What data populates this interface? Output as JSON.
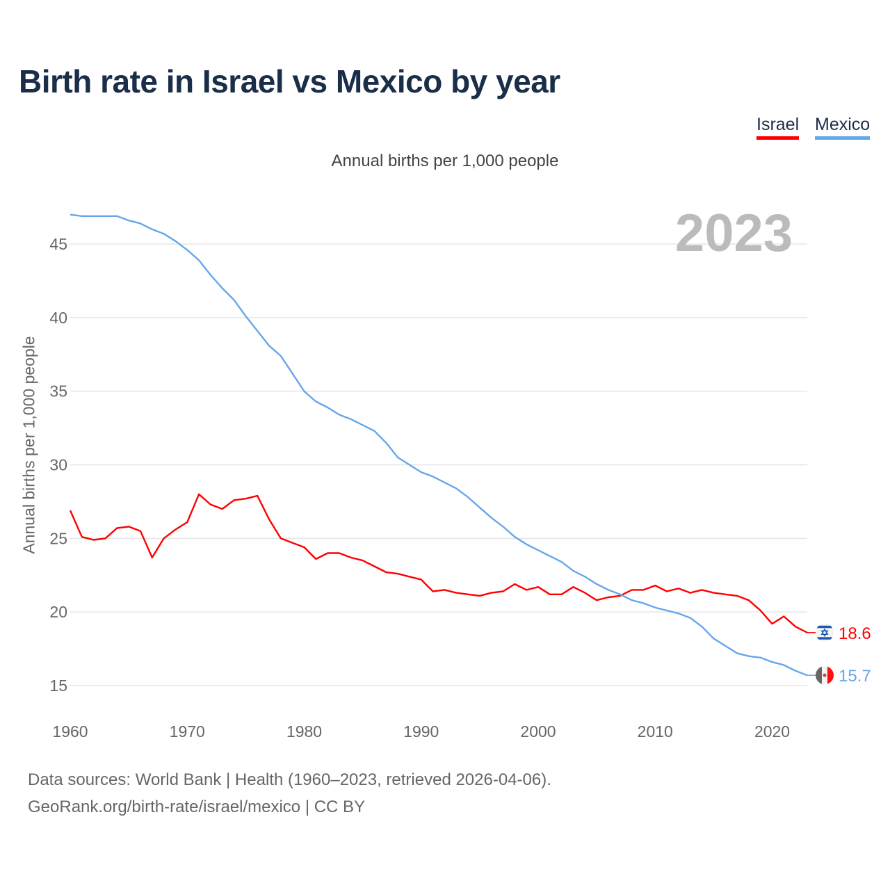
{
  "chart_data": {
    "type": "line",
    "title": "Birth rate in Israel vs Mexico by year",
    "subtitle": "Annual births per 1,000 people",
    "ylabel": "Annual births per 1,000 people",
    "xlabel": "",
    "current_year_label": "2023",
    "xlim": [
      1960,
      2023
    ],
    "ylim": [
      15,
      45
    ],
    "yticks": [
      15,
      20,
      25,
      30,
      35,
      40,
      45
    ],
    "xticks": [
      1960,
      1970,
      1980,
      1990,
      2000,
      2010,
      2020
    ],
    "grid": true,
    "legend_position": "top-right",
    "x_start": 1960,
    "series": [
      {
        "name": "Israel",
        "color": "#ff0000",
        "end_label": "18.6",
        "values": [
          26.9,
          25.1,
          24.9,
          25.0,
          25.7,
          25.8,
          25.5,
          23.7,
          25.0,
          25.6,
          26.1,
          28.0,
          27.3,
          27.0,
          27.6,
          27.7,
          27.9,
          26.3,
          25.0,
          24.7,
          24.4,
          23.6,
          24.0,
          24.0,
          23.7,
          23.5,
          23.1,
          22.7,
          22.6,
          22.4,
          22.2,
          21.4,
          21.5,
          21.3,
          21.2,
          21.1,
          21.3,
          21.4,
          21.9,
          21.5,
          21.7,
          21.2,
          21.2,
          21.7,
          21.3,
          20.8,
          21.0,
          21.1,
          21.5,
          21.5,
          21.8,
          21.4,
          21.6,
          21.3,
          21.5,
          21.3,
          21.2,
          21.1,
          20.8,
          20.1,
          19.2,
          19.7,
          19.0,
          18.6
        ]
      },
      {
        "name": "Mexico",
        "color": "#66a6ea",
        "end_label": "15.7",
        "values": [
          47.0,
          46.9,
          46.9,
          46.9,
          46.9,
          46.6,
          46.4,
          46.0,
          45.7,
          45.2,
          44.6,
          43.9,
          42.9,
          42.0,
          41.2,
          40.1,
          39.1,
          38.1,
          37.4,
          36.2,
          35.0,
          34.3,
          33.9,
          33.4,
          33.1,
          32.7,
          32.3,
          31.5,
          30.5,
          30.0,
          29.5,
          29.2,
          28.8,
          28.4,
          27.8,
          27.1,
          26.4,
          25.8,
          25.1,
          24.6,
          24.2,
          23.8,
          23.4,
          22.8,
          22.4,
          21.9,
          21.5,
          21.2,
          20.8,
          20.6,
          20.3,
          20.1,
          19.9,
          19.6,
          19.0,
          18.2,
          17.7,
          17.2,
          17.0,
          16.9,
          16.6,
          16.4,
          16.0,
          15.7
        ]
      }
    ]
  },
  "footer": {
    "line1": "Data sources: World Bank | Health (1960–2023, retrieved 2026-04-06).",
    "line2": "GeoRank.org/birth-rate/israel/mexico | CC BY"
  },
  "icons": {
    "israel": "israel-flag-icon",
    "mexico": "mexico-flag-icon"
  }
}
